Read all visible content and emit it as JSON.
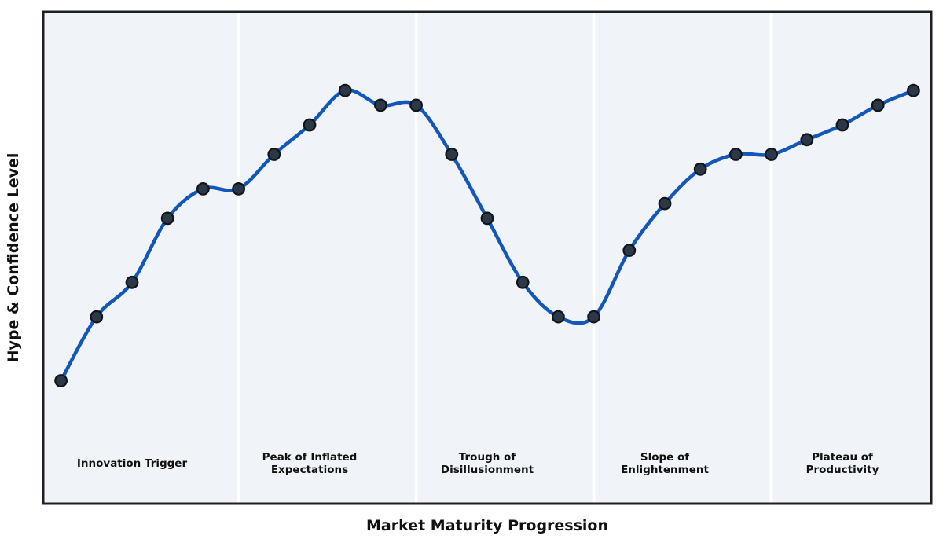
{
  "figure": {
    "title": "",
    "xlabel": "Market Maturity Progression",
    "ylabel": "Hype & Confidence Level"
  },
  "chart_data": {
    "type": "line",
    "title": "",
    "xlabel": "Market Maturity Progression",
    "ylabel": "Hype & Confidence Level",
    "x": [
      0,
      1,
      2,
      3,
      4,
      5,
      6,
      7,
      8,
      9,
      10,
      11,
      12,
      13,
      14,
      15,
      16,
      17,
      18,
      19,
      20,
      21,
      22,
      23,
      24
    ],
    "series": [
      {
        "name": "Hype & Confidence Level",
        "values": [
          25,
          38,
          45,
          58,
          64,
          64,
          71,
          77,
          84,
          81,
          81,
          71,
          58,
          45,
          38,
          38,
          51.5,
          61,
          68,
          71,
          71,
          74,
          77,
          81,
          84
        ]
      }
    ],
    "xlim": [
      -0.5,
      24.5
    ],
    "ylim": [
      0,
      100
    ],
    "grid": false,
    "legend": "none",
    "axis_ticks": "none",
    "line_smoothing": true,
    "marker": "circle",
    "phase_boundaries_x": [
      5,
      10,
      15,
      20
    ],
    "phases": [
      {
        "label": "Innovation Trigger",
        "lines": [
          "Innovation Trigger"
        ],
        "center_x": 2
      },
      {
        "label": "Peak of Inflated Expectations",
        "lines": [
          "Peak of Inflated",
          "Expectations"
        ],
        "center_x": 7
      },
      {
        "label": "Trough of Disillusionment",
        "lines": [
          "Trough of",
          "Disillusionment"
        ],
        "center_x": 12
      },
      {
        "label": "Slope of Enlightenment",
        "lines": [
          "Slope of",
          "Enlightenment"
        ],
        "center_x": 17
      },
      {
        "label": "Plateau of Productivity",
        "lines": [
          "Plateau of",
          "Productivity"
        ],
        "center_x": 22
      }
    ],
    "colors": {
      "line": "#1358b9",
      "marker_fill": "#2c3845",
      "marker_edge": "#10151b",
      "plot_bg": "#f0f4f8",
      "divider": "#ffffff",
      "border": "#1f1f1f",
      "text": "#111111"
    }
  }
}
